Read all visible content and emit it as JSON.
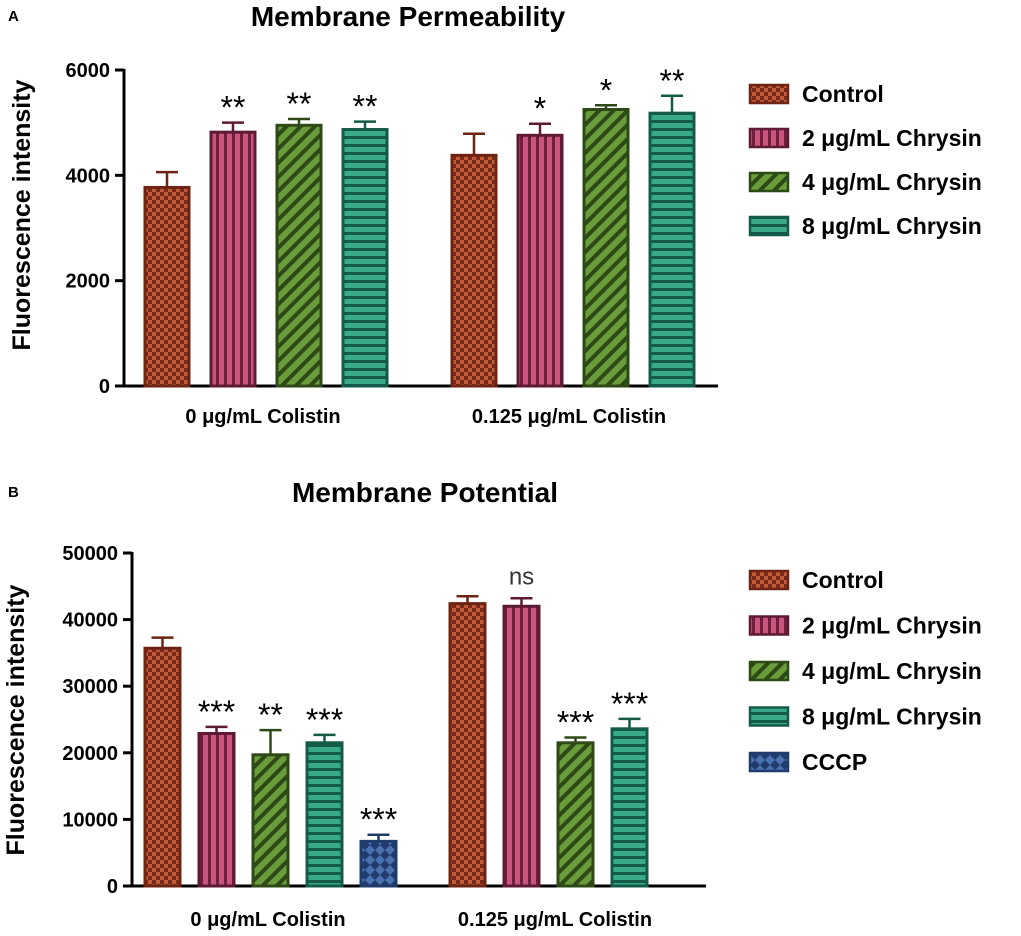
{
  "chart_data": [
    {
      "panel": "A",
      "type": "bar",
      "title": "Membrane Permeability",
      "xlabel": "",
      "ylabel": "Fluorescence intensity",
      "ylim": [
        0,
        6000
      ],
      "yticks": [
        "0",
        "2000",
        "4000",
        "6000"
      ],
      "categories": [
        "0 μg/mL Colistin",
        "0.125 μg/mL Colistin"
      ],
      "series": [
        {
          "name": "Control",
          "values": [
            3770,
            4380
          ],
          "errors": [
            290,
            410
          ],
          "significance": [
            "",
            ""
          ],
          "color": "#a8452e"
        },
        {
          "name": "2 μg/mL Chrysin",
          "values": [
            4820,
            4760
          ],
          "errors": [
            180,
            220
          ],
          "significance": [
            "**",
            "*"
          ],
          "color": "#b04a6c"
        },
        {
          "name": "4 μg/mL Chrysin",
          "values": [
            4950,
            5250
          ],
          "errors": [
            120,
            80
          ],
          "significance": [
            "**",
            "*"
          ],
          "color": "#5a8a35"
        },
        {
          "name": "8 μg/mL Chrysin",
          "values": [
            4870,
            5180
          ],
          "errors": [
            150,
            330
          ],
          "significance": [
            "**",
            "**"
          ],
          "color": "#2e9a7c"
        }
      ],
      "legend": [
        "Control",
        "2 μg/mL Chrysin",
        "4 μg/mL Chrysin",
        "8 μg/mL Chrysin"
      ]
    },
    {
      "panel": "B",
      "type": "bar",
      "title": "Membrane Potential",
      "xlabel": "",
      "ylabel": "Fluorescence intensity",
      "ylim": [
        0,
        50000
      ],
      "yticks": [
        "0",
        "10000",
        "20000",
        "30000",
        "40000",
        "50000"
      ],
      "categories": [
        "0 μg/mL Colistin",
        "0.125 μg/mL Colistin"
      ],
      "series": [
        {
          "name": "Control",
          "values": [
            35700,
            42400
          ],
          "errors": [
            1600,
            1100
          ],
          "significance": [
            "",
            ""
          ],
          "color": "#a8452e"
        },
        {
          "name": "2 μg/mL Chrysin",
          "values": [
            22900,
            42000
          ],
          "errors": [
            1000,
            1200
          ],
          "significance": [
            "***",
            "ns"
          ],
          "color": "#b04a6c"
        },
        {
          "name": "4 μg/mL Chrysin",
          "values": [
            19700,
            21500
          ],
          "errors": [
            3700,
            800
          ],
          "significance": [
            "**",
            "***"
          ],
          "color": "#5a8a35"
        },
        {
          "name": "8 μg/mL Chrysin",
          "values": [
            21500,
            23600
          ],
          "errors": [
            1200,
            1500
          ],
          "significance": [
            "***",
            "***"
          ],
          "color": "#2e9a7c"
        },
        {
          "name": "CCCP",
          "values": [
            6700,
            null
          ],
          "errors": [
            1000,
            null
          ],
          "significance": [
            "***",
            ""
          ],
          "color": "#2f5590"
        }
      ],
      "legend": [
        "Control",
        "2 μg/mL Chrysin",
        "4 μg/mL Chrysin",
        "8 μg/mL Chrysin",
        "CCCP"
      ]
    }
  ]
}
